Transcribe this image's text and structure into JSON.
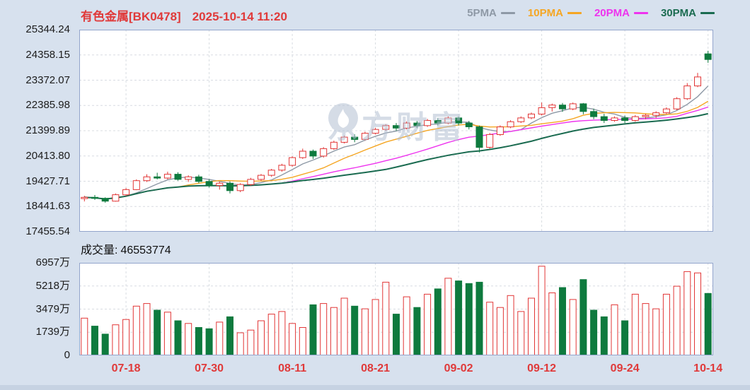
{
  "header": {
    "name": "有色金属[BK0478]",
    "datetime": "2025-10-14 11:20",
    "legend": [
      {
        "label": "5PMA",
        "color": "#8e99a6"
      },
      {
        "label": "10PMA",
        "color": "#f5a623"
      },
      {
        "label": "20PMA",
        "color": "#ee33ee"
      },
      {
        "label": "30PMA",
        "color": "#1a6b50"
      }
    ]
  },
  "volume_header": {
    "label": "成交量:",
    "value": "46553774"
  },
  "watermark": {
    "text": "东方财富"
  },
  "colors": {
    "up": "#e23636",
    "down": "#0e7a3e",
    "grid": "#d8dce2",
    "border": "#93a5cc",
    "axis_text": "#1c1c1c",
    "date_text": "#e03a3a",
    "title_text": "#e03a3a",
    "background": "#d7e1ee"
  },
  "chart_data": {
    "type": "candlestick",
    "title": "有色金属[BK0478]",
    "datetime": "2025-10-14 11:20",
    "price_axis": {
      "min": 17455.54,
      "max": 25344.24,
      "labels": [
        "25344.24",
        "24358.15",
        "23372.07",
        "22385.98",
        "21399.89",
        "20413.80",
        "19427.71",
        "18441.63",
        "17455.54"
      ]
    },
    "volume_axis": {
      "max": 6957,
      "unit": "万",
      "labels": [
        "6957万",
        "5218万",
        "3479万",
        "1739万",
        "0"
      ]
    },
    "current_volume": "46553774",
    "ma_periods": [
      5,
      10,
      20,
      30
    ],
    "x_ticks": [
      {
        "label": "07-18",
        "index": 4
      },
      {
        "label": "07-30",
        "index": 12
      },
      {
        "label": "08-11",
        "index": 20
      },
      {
        "label": "08-21",
        "index": 28
      },
      {
        "label": "09-02",
        "index": 36
      },
      {
        "label": "09-12",
        "index": 44
      },
      {
        "label": "09-24",
        "index": 52
      },
      {
        "label": "10-14",
        "index": 60
      }
    ],
    "candle_fields": [
      "date",
      "open",
      "high",
      "low",
      "close",
      "volume_wan"
    ],
    "candles": [
      [
        "07-14",
        18750,
        18860,
        18640,
        18800,
        2800
      ],
      [
        "07-15",
        18800,
        18890,
        18700,
        18760,
        2200
      ],
      [
        "07-16",
        18760,
        18800,
        18590,
        18650,
        1600
      ],
      [
        "07-17",
        18650,
        18950,
        18630,
        18900,
        2300
      ],
      [
        "07-18",
        18900,
        19160,
        18850,
        19100,
        2700
      ],
      [
        "07-21",
        19100,
        19500,
        19080,
        19450,
        3700
      ],
      [
        "07-22",
        19450,
        19700,
        19400,
        19600,
        3900
      ],
      [
        "07-23",
        19600,
        19760,
        19500,
        19550,
        3400
      ],
      [
        "07-24",
        19550,
        19800,
        19500,
        19700,
        3250
      ],
      [
        "07-25",
        19700,
        19780,
        19450,
        19500,
        2600
      ],
      [
        "07-28",
        19500,
        19660,
        19400,
        19600,
        2400
      ],
      [
        "07-29",
        19600,
        19680,
        19350,
        19420,
        2100
      ],
      [
        "07-30",
        19420,
        19500,
        19180,
        19260,
        2000
      ],
      [
        "07-31",
        19260,
        19410,
        19100,
        19350,
        2500
      ],
      [
        "08-01",
        19350,
        19420,
        18950,
        19060,
        2900
      ],
      [
        "08-04",
        19060,
        19350,
        19000,
        19300,
        1700
      ],
      [
        "08-05",
        19300,
        19560,
        19250,
        19500,
        1900
      ],
      [
        "08-06",
        19500,
        19710,
        19450,
        19660,
        2600
      ],
      [
        "08-07",
        19660,
        19910,
        19600,
        19860,
        3100
      ],
      [
        "08-08",
        19860,
        20110,
        19800,
        20050,
        3300
      ],
      [
        "08-11",
        20050,
        20400,
        20000,
        20350,
        2400
      ],
      [
        "08-12",
        20350,
        20700,
        20300,
        20600,
        2100
      ],
      [
        "08-13",
        20600,
        20660,
        20300,
        20410,
        3800
      ],
      [
        "08-14",
        20410,
        20760,
        20350,
        20700,
        3900
      ],
      [
        "08-15",
        20700,
        21010,
        20650,
        20950,
        3600
      ],
      [
        "08-18",
        20950,
        21210,
        20900,
        21150,
        4300
      ],
      [
        "08-19",
        21150,
        21260,
        20950,
        21060,
        3700
      ],
      [
        "08-20",
        21060,
        21360,
        21000,
        21300,
        3500
      ],
      [
        "08-21",
        21300,
        21510,
        21250,
        21450,
        4200
      ],
      [
        "08-22",
        21450,
        21660,
        21400,
        21600,
        5500
      ],
      [
        "08-25",
        21600,
        21700,
        21400,
        21500,
        3100
      ],
      [
        "08-26",
        21500,
        21760,
        21450,
        21700,
        4400
      ],
      [
        "08-27",
        21700,
        21780,
        21500,
        21600,
        3600
      ],
      [
        "08-28",
        21600,
        21860,
        21550,
        21800,
        4600
      ],
      [
        "08-29",
        21800,
        21890,
        21600,
        21700,
        5000
      ],
      [
        "09-01",
        21700,
        21960,
        21650,
        21900,
        5800
      ],
      [
        "09-02",
        21900,
        21950,
        21600,
        21700,
        5600
      ],
      [
        "09-03",
        21700,
        21780,
        21450,
        21550,
        5400
      ],
      [
        "09-04",
        21550,
        21600,
        20550,
        20750,
        5500
      ],
      [
        "09-05",
        20750,
        21310,
        20700,
        21250,
        4000
      ],
      [
        "09-08",
        21250,
        21610,
        21200,
        21550,
        3600
      ],
      [
        "09-09",
        21550,
        21810,
        21500,
        21750,
        4500
      ],
      [
        "09-10",
        21750,
        21960,
        21700,
        21900,
        3300
      ],
      [
        "09-11",
        21900,
        22110,
        21850,
        22050,
        4300
      ],
      [
        "09-12",
        22050,
        22500,
        22000,
        22300,
        6700
      ],
      [
        "09-15",
        22300,
        22460,
        22150,
        22400,
        4700
      ],
      [
        "09-16",
        22400,
        22480,
        22140,
        22250,
        5100
      ],
      [
        "09-17",
        22250,
        22500,
        22200,
        22450,
        4200
      ],
      [
        "09-18",
        22450,
        22480,
        22040,
        22150,
        5700
      ],
      [
        "09-19",
        22150,
        22260,
        21850,
        21950,
        3400
      ],
      [
        "09-22",
        21950,
        22060,
        21700,
        21800,
        2900
      ],
      [
        "09-23",
        21800,
        21960,
        21750,
        21900,
        3800
      ],
      [
        "09-24",
        21900,
        21990,
        21700,
        21800,
        2600
      ],
      [
        "09-25",
        21800,
        22010,
        21750,
        21950,
        4600
      ],
      [
        "09-26",
        21950,
        22060,
        21850,
        22000,
        3900
      ],
      [
        "09-29",
        22000,
        22160,
        21900,
        22100,
        3500
      ],
      [
        "09-30",
        22100,
        22310,
        22050,
        22250,
        4600
      ],
      [
        "10-09",
        22250,
        22710,
        22200,
        22650,
        5200
      ],
      [
        "10-10",
        22650,
        23260,
        22600,
        23150,
        6300
      ],
      [
        "10-13",
        23150,
        23660,
        23100,
        23500,
        6200
      ],
      [
        "10-14",
        24400,
        24520,
        24050,
        24180,
        4655
      ]
    ]
  }
}
